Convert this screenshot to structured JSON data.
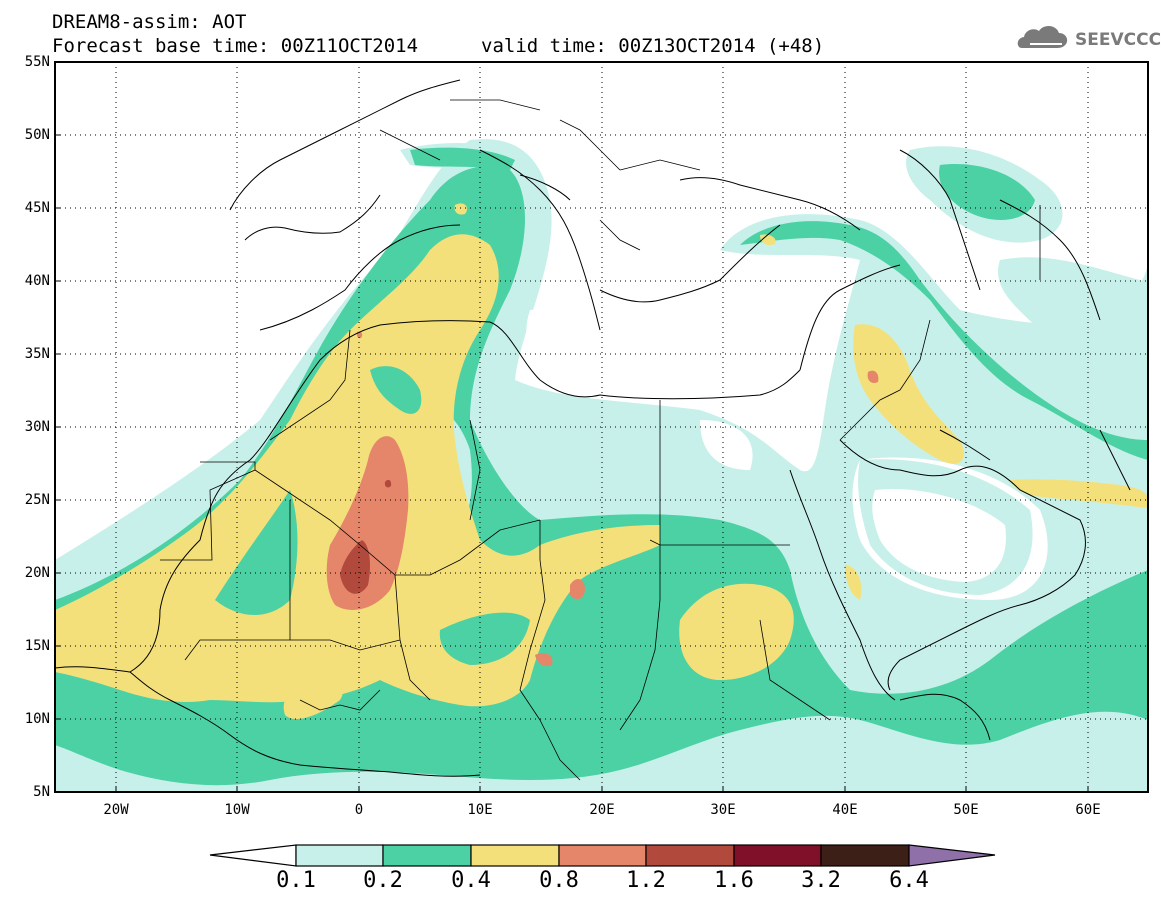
{
  "header": {
    "title_line1": "DREAM8-assim: AOT",
    "title_line2": "Forecast base time: 00Z11OCT2014",
    "valid_time": "valid time: 00Z13OCT2014 (+48)",
    "logo_text": "SEEVCCC",
    "logo_icon": "cloud-icon"
  },
  "map": {
    "variable": "AOT",
    "lat_range": [
      5,
      55
    ],
    "lon_range": [
      -25,
      65
    ],
    "lat_labels": [
      "55N",
      "50N",
      "45N",
      "40N",
      "35N",
      "30N",
      "25N",
      "20N",
      "15N",
      "10N",
      "5N"
    ],
    "lon_labels": [
      "20W",
      "10W",
      "0",
      "10E",
      "20E",
      "30E",
      "40E",
      "50E",
      "60E"
    ],
    "grid": "dotted",
    "max_region": "Algeria/Mali border near 0E, 20N (1.2-1.6)"
  },
  "colorbar": {
    "labels": [
      "0.1",
      "0.2",
      "0.4",
      "0.8",
      "1.2",
      "1.6",
      "3.2",
      "6.4"
    ],
    "colors": [
      "#ffffff",
      "#c8f0ea",
      "#4cd1a4",
      "#f4e07a",
      "#e5866a",
      "#b14a3c",
      "#80102a",
      "#3c2018",
      "#9070a8"
    ]
  }
}
